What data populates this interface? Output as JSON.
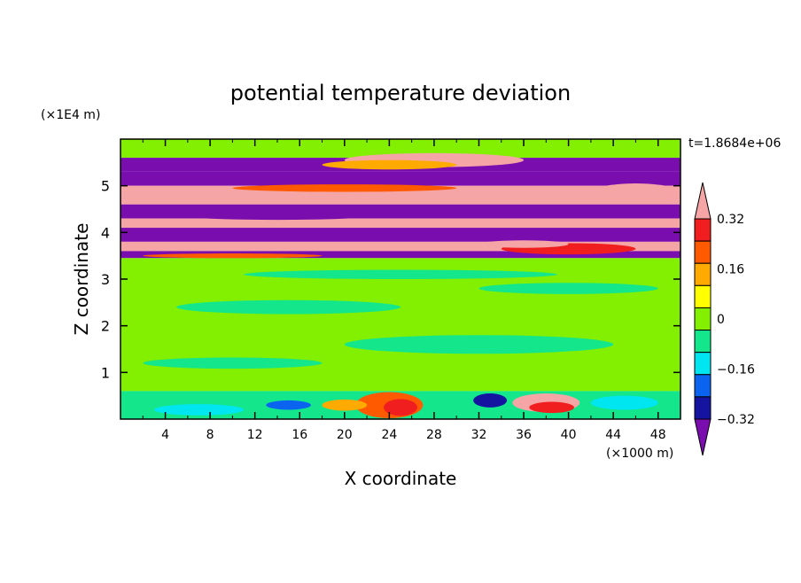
{
  "chart_data": {
    "type": "heatmap",
    "title": "potential temperature deviation",
    "xlabel": "X coordinate",
    "ylabel": "Z coordinate",
    "x_unit": "(×1000 m)",
    "y_unit": "(×1E4 m)",
    "time_label": "t=1.8684e+06",
    "xlim": [
      0,
      50
    ],
    "ylim": [
      0,
      6
    ],
    "x_ticks": [
      4,
      8,
      12,
      16,
      20,
      24,
      28,
      32,
      36,
      40,
      44,
      48
    ],
    "y_ticks": [
      1,
      2,
      3,
      4,
      5
    ],
    "colorbar": {
      "labels": [
        "0.32",
        "0.16",
        "0",
        "−0.16",
        "−0.32"
      ],
      "label_values": [
        0.32,
        0.16,
        0,
        -0.16,
        -0.32
      ],
      "levels": [
        -0.4,
        -0.32,
        -0.24,
        -0.16,
        -0.08,
        0,
        0.08,
        0.16,
        0.24,
        0.32,
        0.4
      ],
      "colors": [
        "#7a0dad",
        "#1414a0",
        "#0a64f0",
        "#00e6f0",
        "#14e68c",
        "#82f000",
        "#ffff00",
        "#ffaa00",
        "#ff5a00",
        "#f01e1e",
        "#f5a5a5"
      ]
    },
    "bands": [
      {
        "z": [
          5.6,
          6.0
        ],
        "level": 5
      },
      {
        "z": [
          5.3,
          5.6
        ],
        "level": 0
      },
      {
        "z": [
          5.0,
          5.3
        ],
        "level": 0
      },
      {
        "z": [
          4.6,
          5.0
        ],
        "level": 10
      },
      {
        "z": [
          4.3,
          4.6
        ],
        "level": 0
      },
      {
        "z": [
          4.1,
          4.3
        ],
        "level": 10
      },
      {
        "z": [
          3.8,
          4.1
        ],
        "level": 0
      },
      {
        "z": [
          3.6,
          3.8
        ],
        "level": 10
      },
      {
        "z": [
          3.45,
          3.6
        ],
        "level": 0
      },
      {
        "z": [
          0.6,
          3.45
        ],
        "level": 5
      },
      {
        "z": [
          0.0,
          0.6
        ],
        "level": 4
      }
    ],
    "blobs": [
      {
        "x": 28,
        "z": 5.55,
        "rx": 8,
        "rz": 0.15,
        "level": 10
      },
      {
        "x": 24,
        "z": 5.45,
        "rx": 6,
        "rz": 0.1,
        "level": 7
      },
      {
        "x": 46,
        "z": 4.85,
        "rx": 4,
        "rz": 0.2,
        "level": 10
      },
      {
        "x": 20,
        "z": 4.95,
        "rx": 10,
        "rz": 0.08,
        "level": 8
      },
      {
        "x": 14,
        "z": 4.35,
        "rx": 8,
        "rz": 0.08,
        "level": 0
      },
      {
        "x": 40,
        "z": 3.65,
        "rx": 6,
        "rz": 0.12,
        "level": 9
      },
      {
        "x": 36,
        "z": 3.75,
        "rx": 4,
        "rz": 0.08,
        "level": 10
      },
      {
        "x": 10,
        "z": 3.5,
        "rx": 8,
        "rz": 0.05,
        "level": 8
      },
      {
        "x": 24,
        "z": 0.3,
        "rx": 3,
        "rz": 0.28,
        "level": 8
      },
      {
        "x": 25,
        "z": 0.25,
        "rx": 1.5,
        "rz": 0.18,
        "level": 9
      },
      {
        "x": 38,
        "z": 0.35,
        "rx": 3,
        "rz": 0.2,
        "level": 10
      },
      {
        "x": 38.5,
        "z": 0.25,
        "rx": 2,
        "rz": 0.12,
        "level": 9
      },
      {
        "x": 33,
        "z": 0.4,
        "rx": 1.5,
        "rz": 0.15,
        "level": 1
      },
      {
        "x": 15,
        "z": 0.3,
        "rx": 2,
        "rz": 0.1,
        "level": 2
      },
      {
        "x": 20,
        "z": 0.3,
        "rx": 2,
        "rz": 0.12,
        "level": 7
      },
      {
        "x": 45,
        "z": 0.35,
        "rx": 3,
        "rz": 0.15,
        "level": 3
      },
      {
        "x": 7,
        "z": 0.2,
        "rx": 4,
        "rz": 0.12,
        "level": 3
      },
      {
        "x": 15,
        "z": 2.4,
        "rx": 10,
        "rz": 0.15,
        "level": 4
      },
      {
        "x": 32,
        "z": 1.6,
        "rx": 12,
        "rz": 0.2,
        "level": 4
      },
      {
        "x": 10,
        "z": 1.2,
        "rx": 8,
        "rz": 0.12,
        "level": 4
      },
      {
        "x": 40,
        "z": 2.8,
        "rx": 8,
        "rz": 0.12,
        "level": 4
      },
      {
        "x": 25,
        "z": 3.1,
        "rx": 14,
        "rz": 0.1,
        "level": 4
      }
    ]
  }
}
